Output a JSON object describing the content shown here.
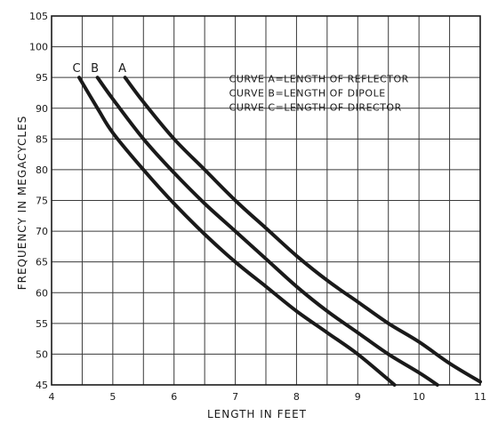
{
  "chart_data": {
    "type": "line",
    "title": "",
    "xlabel": "LENGTH IN FEET",
    "ylabel": "FREQUENCY IN MEGACYCLES",
    "xlim": [
      4,
      11
    ],
    "ylim": [
      45,
      105
    ],
    "x_ticks": [
      "4",
      "5",
      "6",
      "7",
      "8",
      "9",
      "10",
      "11"
    ],
    "y_ticks": [
      "45",
      "50",
      "55",
      "60",
      "65",
      "70",
      "75",
      "80",
      "85",
      "90",
      "95",
      "100",
      "105"
    ],
    "grid": true,
    "legend": [
      "CURVE A=LENGTH OF REFLECTOR",
      "CURVE B=LENGTH OF DIPOLE",
      "CURVE C=LENGTH OF DIRECTOR"
    ],
    "series": [
      {
        "name": "A",
        "color": "#1a1a1a",
        "points": [
          [
            5.2,
            95
          ],
          [
            5.5,
            91
          ],
          [
            6.0,
            85
          ],
          [
            6.5,
            80
          ],
          [
            7.0,
            75
          ],
          [
            7.5,
            70.5
          ],
          [
            8.0,
            66
          ],
          [
            8.5,
            62
          ],
          [
            9.0,
            58.5
          ],
          [
            9.5,
            55
          ],
          [
            10.0,
            52
          ],
          [
            10.5,
            48.5
          ],
          [
            11.0,
            45.5
          ]
        ]
      },
      {
        "name": "B",
        "color": "#1a1a1a",
        "points": [
          [
            4.75,
            95
          ],
          [
            5.0,
            91.5
          ],
          [
            5.5,
            85
          ],
          [
            6.0,
            79.5
          ],
          [
            6.5,
            74.5
          ],
          [
            7.0,
            70
          ],
          [
            7.5,
            65.5
          ],
          [
            8.0,
            61
          ],
          [
            8.5,
            57
          ],
          [
            9.0,
            53.5
          ],
          [
            9.5,
            50
          ],
          [
            10.0,
            47
          ],
          [
            10.3,
            45
          ]
        ]
      },
      {
        "name": "C",
        "color": "#1a1a1a",
        "points": [
          [
            4.45,
            95
          ],
          [
            4.75,
            90
          ],
          [
            5.0,
            86
          ],
          [
            5.5,
            80
          ],
          [
            6.0,
            74.5
          ],
          [
            6.5,
            69.5
          ],
          [
            7.0,
            65
          ],
          [
            7.5,
            61
          ],
          [
            8.0,
            57
          ],
          [
            8.5,
            53.5
          ],
          [
            9.0,
            50
          ],
          [
            9.6,
            45
          ]
        ]
      }
    ]
  }
}
